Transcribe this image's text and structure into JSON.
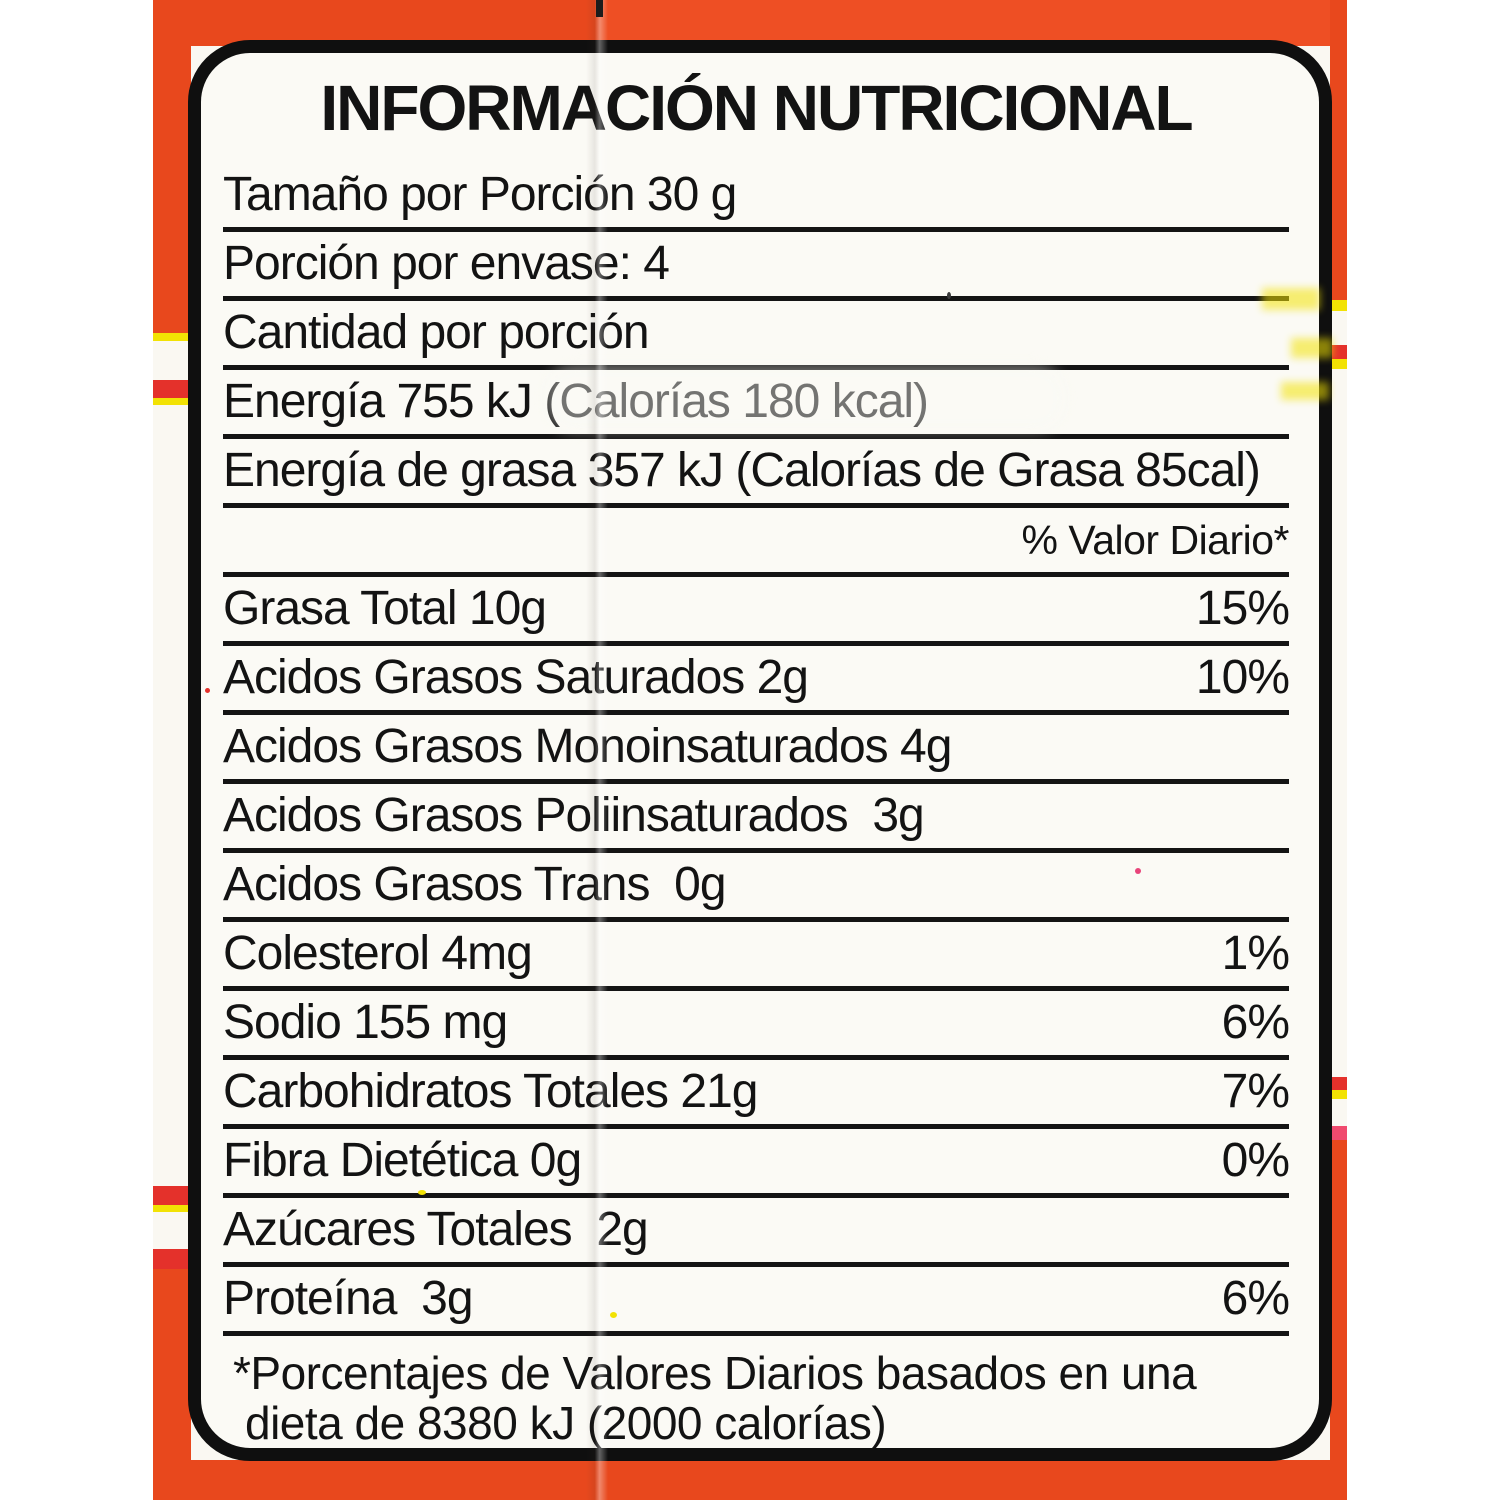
{
  "colors": {
    "orange": "#E8481D",
    "orangeBright": "#EF5126",
    "stripeRed": "#E4312B",
    "stripeYellow": "#F2E204",
    "stripePink": "#F04A6E",
    "labelBg": "#FBFAF5",
    "packageWhite": "#FAF8F2",
    "ink": "#131313",
    "scanBg": "#FFFFFF"
  },
  "panel": {
    "title": "INFORMACIÓN NUTRICIONAL",
    "daily_value_header": "% Valor Diario*",
    "footnote_line1": "*Porcentajes de Valores Diarios basados en una",
    "footnote_line2": "dieta de 8380 kJ (2000 calorías)"
  },
  "rows": [
    {
      "label": "Tamaño por Porción 30 g",
      "pct": ""
    },
    {
      "label": "Porción por envase: 4",
      "pct": ""
    },
    {
      "label": "Cantidad por porción",
      "pct": ""
    },
    {
      "label": "Energía 755 kJ (Calorías 180 kcal)",
      "pct": ""
    },
    {
      "label": "Energía de grasa 357 kJ (Calorías de Grasa 85cal)",
      "pct": ""
    },
    {
      "label": "Grasa Total 10g",
      "pct": "15%"
    },
    {
      "label": "Acidos Grasos Saturados 2g",
      "pct": "10%"
    },
    {
      "label": "Acidos Grasos Monoinsaturados 4g",
      "pct": ""
    },
    {
      "label": "Acidos Grasos Poliinsaturados  3g",
      "pct": ""
    },
    {
      "label": "Acidos Grasos Trans  0g",
      "pct": ""
    },
    {
      "label": "Colesterol 4mg",
      "pct": "1%"
    },
    {
      "label": "Sodio 155 mg",
      "pct": "6%"
    },
    {
      "label": "Carbohidratos Totales 21g",
      "pct": "7%"
    },
    {
      "label": "Fibra Dietética 0g",
      "pct": "0%"
    },
    {
      "label": "Azúcares Totales  2g",
      "pct": ""
    },
    {
      "label": "Proteína  3g",
      "pct": "6%"
    }
  ]
}
